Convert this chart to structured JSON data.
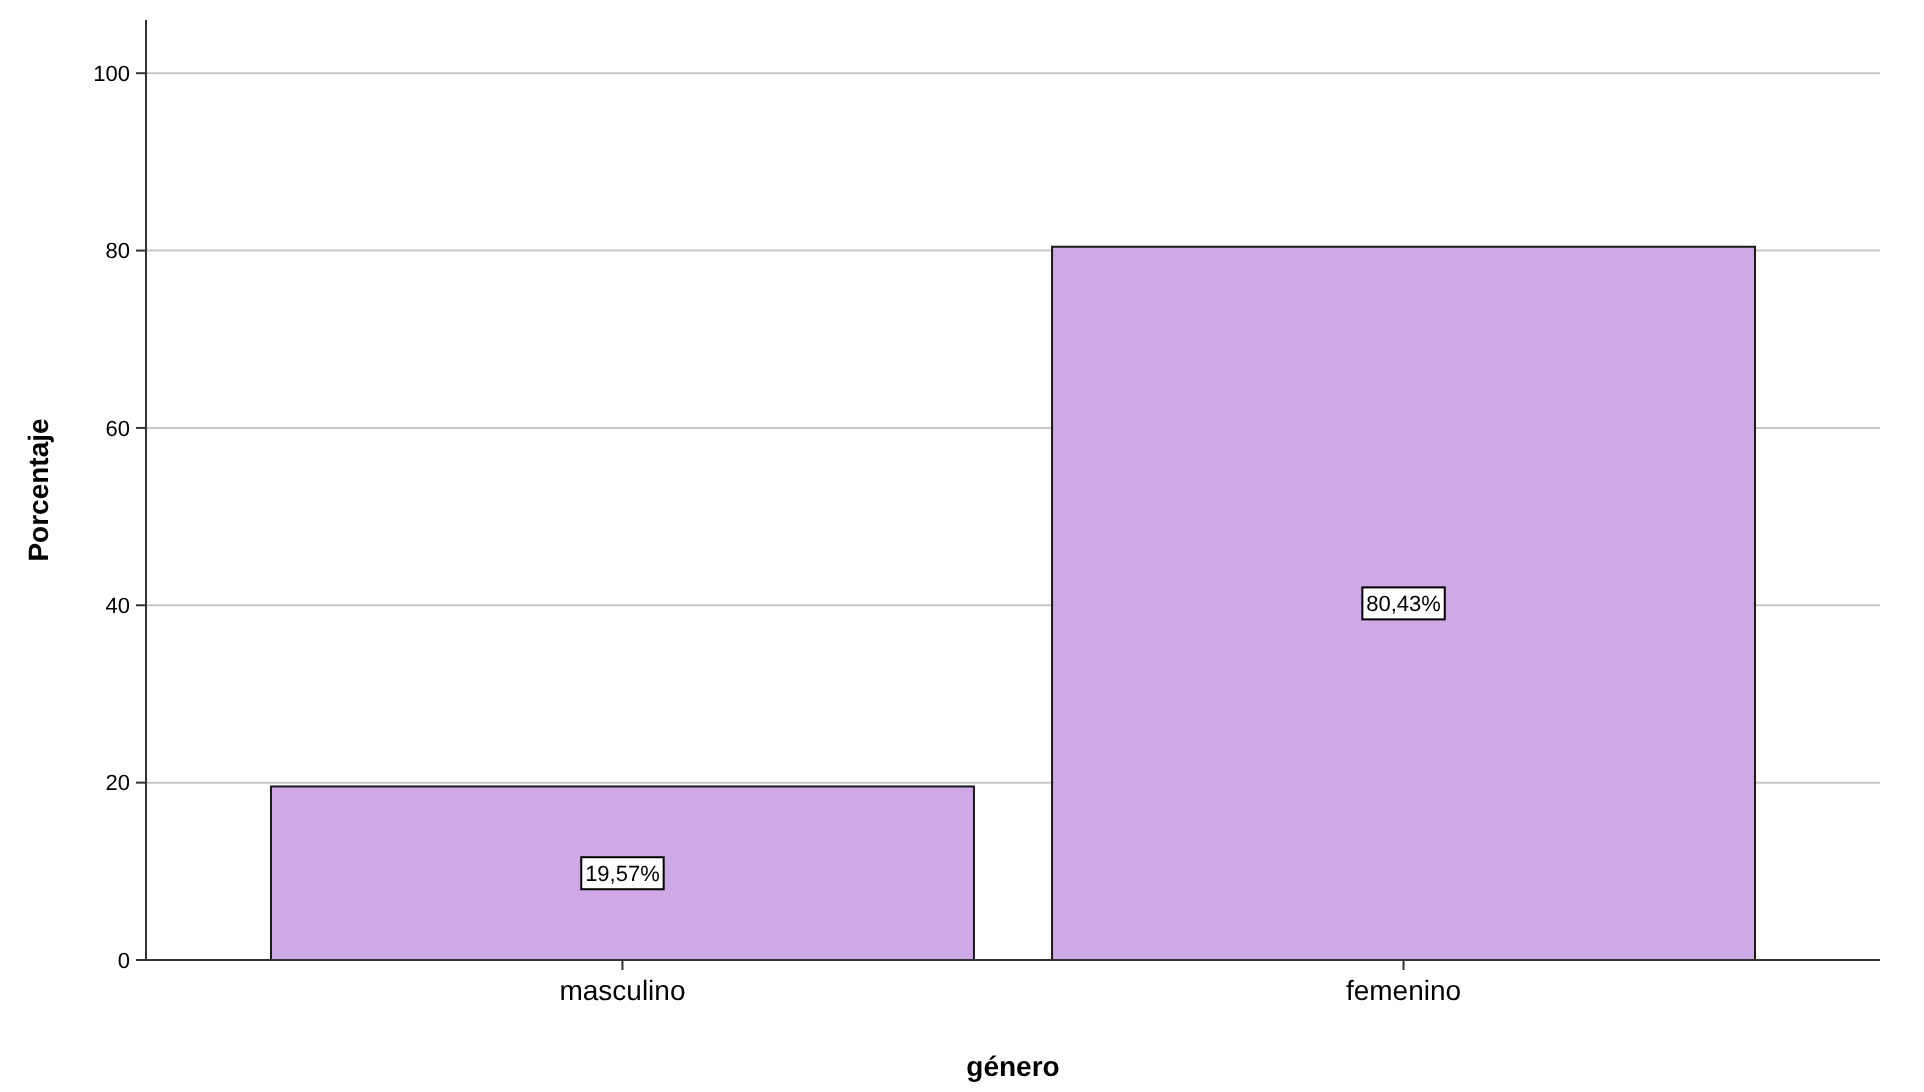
{
  "chart_data": {
    "type": "bar",
    "xlabel": "género",
    "ylabel": "Porcentaje",
    "categories": [
      "masculino",
      "femenino"
    ],
    "values": [
      19.57,
      80.43
    ],
    "value_labels": [
      "19,57%",
      "80,43%"
    ],
    "color": "#cfa9e5",
    "ylim": [
      0,
      106
    ],
    "yticks": [
      0,
      20,
      40,
      60,
      80,
      100
    ],
    "grid": "y"
  }
}
